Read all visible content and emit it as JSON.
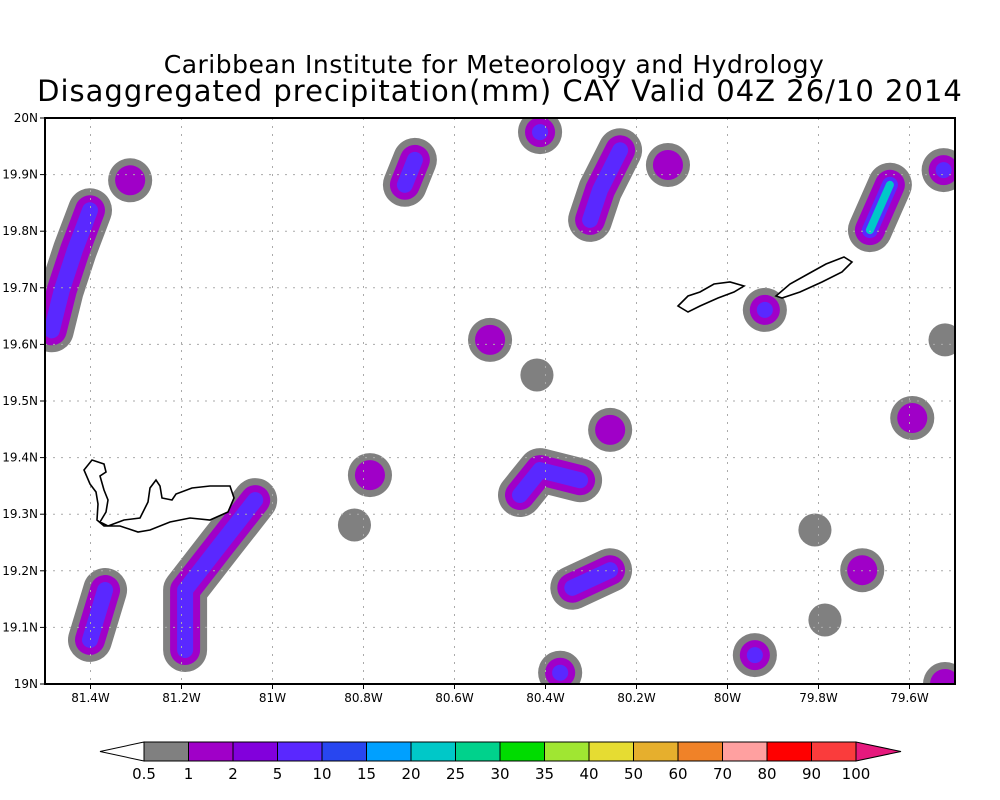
{
  "title_line1": "Caribbean Institute for Meteorology and Hydrology",
  "title_line2": "Disaggregated precipitation(mm) CAY Valid 04Z 26/10 2014",
  "map": {
    "lon_range": [
      -81.5,
      -79.5
    ],
    "lat_range": [
      19.0,
      20.0
    ],
    "lon_ticks": [
      {
        "v": -81.4,
        "label": "81.4W"
      },
      {
        "v": -81.2,
        "label": "81.2W"
      },
      {
        "v": -81.0,
        "label": "81W"
      },
      {
        "v": -80.8,
        "label": "80.8W"
      },
      {
        "v": -80.6,
        "label": "80.6W"
      },
      {
        "v": -80.4,
        "label": "80.4W"
      },
      {
        "v": -80.2,
        "label": "80.2W"
      },
      {
        "v": -80.0,
        "label": "80W"
      },
      {
        "v": -79.8,
        "label": "79.8W"
      },
      {
        "v": -79.6,
        "label": "79.6W"
      }
    ],
    "lat_ticks": [
      {
        "v": 19.0,
        "label": "19N"
      },
      {
        "v": 19.1,
        "label": "19.1N"
      },
      {
        "v": 19.2,
        "label": "19.2N"
      },
      {
        "v": 19.3,
        "label": "19.3N"
      },
      {
        "v": 19.4,
        "label": "19.4N"
      },
      {
        "v": 19.5,
        "label": "19.5N"
      },
      {
        "v": 19.6,
        "label": "19.6N"
      },
      {
        "v": 19.7,
        "label": "19.7N"
      },
      {
        "v": 19.8,
        "label": "19.8N"
      },
      {
        "v": 19.9,
        "label": "19.9N"
      },
      {
        "v": 20.0,
        "label": "20N"
      }
    ],
    "precip_cells": [
      {
        "pts": [
          [
            -81.485,
            19.625
          ],
          [
            -81.463,
            19.696
          ],
          [
            -81.434,
            19.767
          ],
          [
            -81.401,
            19.837
          ]
        ],
        "level": 3
      },
      {
        "pts": [
          [
            -81.313,
            19.89
          ]
        ],
        "level": 2
      },
      {
        "pts": [
          [
            -81.401,
            19.078
          ],
          [
            -81.368,
            19.166
          ]
        ],
        "level": 3
      },
      {
        "pts": [
          [
            -81.192,
            19.06
          ],
          [
            -81.192,
            19.166
          ],
          [
            -81.115,
            19.246
          ],
          [
            -81.038,
            19.325
          ]
        ],
        "level": 3
      },
      {
        "pts": [
          [
            -80.786,
            19.369
          ]
        ],
        "level": 2
      },
      {
        "pts": [
          [
            -80.82,
            19.281
          ]
        ],
        "level": 1
      },
      {
        "pts": [
          [
            -80.709,
            19.882
          ],
          [
            -80.687,
            19.926
          ]
        ],
        "level": 3
      },
      {
        "pts": [
          [
            -80.412,
            19.975
          ]
        ],
        "level": 3
      },
      {
        "pts": [
          [
            -80.302,
            19.82
          ],
          [
            -80.28,
            19.873
          ],
          [
            -80.236,
            19.943
          ]
        ],
        "level": 3
      },
      {
        "pts": [
          [
            -80.131,
            19.917
          ]
        ],
        "level": 2
      },
      {
        "pts": [
          [
            -80.522,
            19.608
          ]
        ],
        "level": 2
      },
      {
        "pts": [
          [
            -80.419,
            19.546
          ]
        ],
        "level": 1
      },
      {
        "pts": [
          [
            -80.456,
            19.334
          ],
          [
            -80.412,
            19.378
          ],
          [
            -80.324,
            19.36
          ]
        ],
        "level": 3
      },
      {
        "pts": [
          [
            -80.258,
            19.449
          ]
        ],
        "level": 2
      },
      {
        "pts": [
          [
            -80.341,
            19.17
          ],
          [
            -80.258,
            19.201
          ]
        ],
        "level": 3
      },
      {
        "pts": [
          [
            -80.368,
            19.02
          ]
        ],
        "level": 3
      },
      {
        "pts": [
          [
            -79.94,
            19.051
          ]
        ],
        "level": 3
      },
      {
        "pts": [
          [
            -79.918,
            19.661
          ]
        ],
        "level": 3
      },
      {
        "pts": [
          [
            -79.687,
            19.802
          ],
          [
            -79.643,
            19.882
          ]
        ],
        "level": 4
      },
      {
        "pts": [
          [
            -79.525,
            19.908
          ]
        ],
        "level": 3
      },
      {
        "pts": [
          [
            -79.594,
            19.47
          ]
        ],
        "level": 2
      },
      {
        "pts": [
          [
            -79.704,
            19.201
          ]
        ],
        "level": 2
      },
      {
        "pts": [
          [
            -79.786,
            19.113
          ]
        ],
        "level": 1
      },
      {
        "pts": [
          [
            -79.808,
            19.272
          ]
        ],
        "level": 1
      },
      {
        "pts": [
          [
            -79.522,
            19.608
          ]
        ],
        "level": 1
      },
      {
        "pts": [
          [
            -79.522,
            19.0
          ]
        ],
        "level": 2
      }
    ]
  },
  "colorbar": {
    "labels": [
      "0.5",
      "1",
      "2",
      "5",
      "10",
      "15",
      "20",
      "25",
      "30",
      "35",
      "40",
      "50",
      "60",
      "70",
      "80",
      "90",
      "100"
    ],
    "colors": [
      "#808080",
      "#a000c8",
      "#8200dc",
      "#5a28ff",
      "#2846f0",
      "#00a0ff",
      "#00c8c8",
      "#00d28c",
      "#00dc00",
      "#a0e632",
      "#e6dc32",
      "#e6af2d",
      "#f08228",
      "#ffa0a0",
      "#ff0000",
      "#fa3c3c"
    ],
    "under_color": "#ffffff",
    "over_color": "#e6197d"
  }
}
